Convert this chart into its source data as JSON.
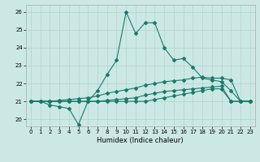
{
  "xlabel": "Humidex (Indice chaleur)",
  "xlim": [
    -0.5,
    23.5
  ],
  "ylim": [
    19.6,
    26.4
  ],
  "yticks": [
    20,
    21,
    22,
    23,
    24,
    25,
    26
  ],
  "xticks": [
    0,
    1,
    2,
    3,
    4,
    5,
    6,
    7,
    8,
    9,
    10,
    11,
    12,
    13,
    14,
    15,
    16,
    17,
    18,
    19,
    20,
    21,
    22,
    23
  ],
  "bg_color": "#cce8e4",
  "grid_color": "#b0d4cc",
  "line_color": "#1a7a6a",
  "line1_x": [
    0,
    1,
    2,
    3,
    4,
    5,
    6,
    7,
    8,
    9,
    10,
    11,
    12,
    13,
    14,
    15,
    16,
    17,
    18,
    19,
    20,
    21,
    22,
    23
  ],
  "line1_y": [
    21.0,
    21.0,
    20.8,
    20.7,
    20.6,
    19.7,
    21.0,
    21.6,
    22.5,
    23.3,
    26.0,
    24.8,
    25.4,
    25.4,
    24.0,
    23.3,
    23.4,
    22.9,
    22.3,
    22.2,
    22.1,
    21.6,
    21.0,
    21.0
  ],
  "line2_x": [
    0,
    1,
    2,
    3,
    4,
    5,
    6,
    7,
    8,
    9,
    10,
    11,
    12,
    13,
    14,
    15,
    16,
    17,
    18,
    19,
    20,
    21,
    22,
    23
  ],
  "line2_y": [
    21.0,
    21.0,
    21.0,
    21.05,
    21.1,
    21.15,
    21.2,
    21.3,
    21.45,
    21.55,
    21.65,
    21.75,
    21.9,
    22.0,
    22.1,
    22.15,
    22.2,
    22.3,
    22.35,
    22.3,
    22.3,
    22.2,
    21.0,
    21.0
  ],
  "line3_x": [
    0,
    1,
    2,
    3,
    4,
    5,
    6,
    7,
    8,
    9,
    10,
    11,
    12,
    13,
    14,
    15,
    16,
    17,
    18,
    19,
    20,
    21,
    22,
    23
  ],
  "line3_y": [
    21.0,
    21.0,
    21.0,
    21.0,
    21.0,
    21.0,
    21.0,
    21.0,
    21.05,
    21.1,
    21.15,
    21.2,
    21.35,
    21.45,
    21.55,
    21.6,
    21.65,
    21.7,
    21.75,
    21.8,
    21.85,
    21.0,
    21.0,
    21.0
  ],
  "line4_x": [
    0,
    1,
    2,
    3,
    4,
    5,
    6,
    7,
    8,
    9,
    10,
    11,
    12,
    13,
    14,
    15,
    16,
    17,
    18,
    19,
    20,
    21,
    22,
    23
  ],
  "line4_y": [
    21.0,
    21.0,
    21.0,
    21.0,
    21.0,
    21.0,
    21.0,
    21.0,
    21.0,
    21.0,
    21.0,
    21.0,
    21.0,
    21.1,
    21.2,
    21.3,
    21.4,
    21.5,
    21.6,
    21.7,
    21.7,
    21.0,
    21.0,
    21.0
  ]
}
